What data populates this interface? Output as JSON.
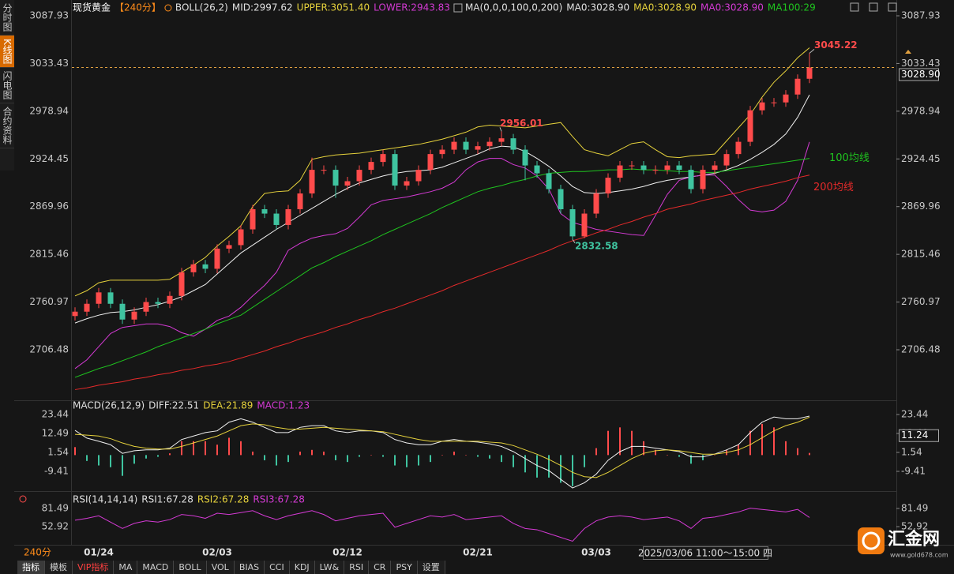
{
  "chart_data": [
    {
      "type": "candlestick",
      "legend": [
        {
          "text": "现货黄金",
          "color": "#ffffff"
        },
        {
          "text": "【240分】",
          "color": "#ff8c1a"
        },
        {
          "text": "BOLL(26,2)",
          "color": "#e0e0e0"
        },
        {
          "text": "MID:2997.62",
          "color": "#e0e0e0"
        },
        {
          "text": "UPPER:3051.40",
          "color": "#e6d23c"
        },
        {
          "text": "LOWER:2943.83",
          "color": "#d43ad4"
        },
        {
          "text": "MA(0,0,0,100,0,200)",
          "color": "#e0e0e0"
        },
        {
          "text": "MA0:3028.90",
          "color": "#e0e0e0"
        },
        {
          "text": "MA0:3028.90",
          "color": "#e6d23c"
        },
        {
          "text": "MA0:3028.90",
          "color": "#d43ad4"
        },
        {
          "text": "MA100:29",
          "color": "#1fc41f"
        }
      ],
      "categories": [
        null,
        null,
        "01/24",
        null,
        null,
        null,
        null,
        null,
        null,
        null,
        null,
        null,
        "02/03",
        null,
        null,
        null,
        null,
        null,
        null,
        null,
        null,
        null,
        null,
        "02/12",
        null,
        null,
        null,
        null,
        null,
        null,
        null,
        null,
        null,
        null,
        "02/21",
        null,
        null,
        null,
        null,
        null,
        null,
        null,
        null,
        null,
        "03/03",
        null,
        null,
        null,
        null,
        null,
        null,
        null,
        null,
        null,
        null,
        null,
        null,
        null,
        null,
        null,
        null,
        null,
        null
      ],
      "candles": {
        "open": [
          2745,
          2750,
          2759,
          2772,
          2759,
          2741,
          2750,
          2761,
          2759,
          2768,
          2795,
          2804,
          2799,
          2822,
          2826,
          2844,
          2867,
          2862,
          2849,
          2867,
          2885,
          2912,
          2912,
          2894,
          2899,
          2912,
          2921,
          2930,
          2894,
          2899,
          2912,
          2930,
          2935,
          2944,
          2935,
          2939,
          2944,
          2948,
          2935,
          2917,
          2908,
          2890,
          2867,
          2836,
          2862,
          2885,
          2903,
          2917,
          2917,
          2912,
          2912,
          2917,
          2912,
          2890,
          2912,
          2917,
          2930,
          2944,
          2980,
          2989,
          2989,
          2998,
          3016
        ],
        "high": [
          2755,
          2764,
          2777,
          2777,
          2764,
          2755,
          2766,
          2766,
          2773,
          2800,
          2809,
          2809,
          2827,
          2831,
          2849,
          2872,
          2872,
          2867,
          2872,
          2890,
          2926,
          2917,
          2917,
          2904,
          2917,
          2926,
          2935,
          2935,
          2904,
          2917,
          2935,
          2940,
          2949,
          2949,
          2944,
          2949,
          2956.01,
          2953,
          2940,
          2922,
          2913,
          2895,
          2872,
          2867,
          2890,
          2908,
          2922,
          2922,
          2922,
          2917,
          2922,
          2922,
          2917,
          2917,
          2922,
          2935,
          2949,
          2985,
          2994,
          2994,
          3003,
          3021,
          3045.22
        ],
        "low": [
          2740,
          2745,
          2754,
          2754,
          2736,
          2736,
          2745,
          2754,
          2754,
          2763,
          2790,
          2794,
          2794,
          2817,
          2821,
          2839,
          2857,
          2844,
          2844,
          2862,
          2880,
          2907,
          2880,
          2889,
          2894,
          2907,
          2916,
          2889,
          2889,
          2894,
          2907,
          2925,
          2930,
          2930,
          2930,
          2934,
          2939,
          2930,
          2900,
          2903,
          2885,
          2862,
          2832.58,
          2834,
          2857,
          2880,
          2898,
          2912,
          2907,
          2907,
          2907,
          2907,
          2885,
          2885,
          2907,
          2912,
          2925,
          2939,
          2975,
          2984,
          2984,
          2993,
          3011
        ],
        "close": [
          2750,
          2759,
          2772,
          2759,
          2741,
          2750,
          2761,
          2759,
          2768,
          2795,
          2804,
          2799,
          2822,
          2826,
          2844,
          2867,
          2862,
          2849,
          2867,
          2885,
          2912,
          2912,
          2894,
          2899,
          2912,
          2921,
          2930,
          2894,
          2899,
          2912,
          2930,
          2935,
          2944,
          2935,
          2939,
          2944,
          2948,
          2935,
          2917,
          2908,
          2890,
          2867,
          2836,
          2862,
          2885,
          2903,
          2917,
          2917,
          2912,
          2912,
          2917,
          2912,
          2890,
          2912,
          2917,
          2930,
          2944,
          2980,
          2989,
          2989,
          2998,
          3016,
          3028.9
        ]
      },
      "up_color": "#ff4b4b",
      "down_color": "#3fc4a0",
      "series": [
        {
          "color": "#e6d23c",
          "values": [
            2768,
            2774,
            2783,
            2786,
            2786,
            2786,
            2786,
            2786,
            2787,
            2795,
            2803,
            2812,
            2825,
            2836,
            2848,
            2870,
            2885,
            2887,
            2888,
            2900,
            2924,
            2927,
            2929,
            2930,
            2931,
            2933,
            2935,
            2937,
            2939,
            2941,
            2944,
            2947,
            2951,
            2955,
            2961,
            2963,
            2962,
            2961,
            2960,
            2962,
            2964,
            2966,
            2950,
            2935,
            2931,
            2928,
            2935,
            2942,
            2944,
            2935,
            2927,
            2926,
            2928,
            2929,
            2930,
            2945,
            2960,
            2975,
            2995,
            3012,
            3025,
            3040,
            3051.4
          ]
        },
        {
          "color": "#f0f0f0",
          "values": [
            2737,
            2742,
            2746,
            2749,
            2750,
            2752,
            2755,
            2758,
            2762,
            2767,
            2774,
            2781,
            2793,
            2805,
            2817,
            2826,
            2835,
            2844,
            2852,
            2860,
            2868,
            2876,
            2884,
            2891,
            2897,
            2901,
            2905,
            2908,
            2910,
            2911,
            2912,
            2915,
            2920,
            2925,
            2930,
            2936,
            2939,
            2938,
            2933,
            2925,
            2916,
            2905,
            2893,
            2886,
            2885,
            2886,
            2888,
            2890,
            2893,
            2897,
            2900,
            2902,
            2904,
            2906,
            2908,
            2912,
            2917,
            2924,
            2932,
            2941,
            2953,
            2972,
            2997.62
          ]
        },
        {
          "color": "#d43ad4",
          "values": [
            2685,
            2695,
            2710,
            2725,
            2732,
            2734,
            2736,
            2736,
            2733,
            2726,
            2722,
            2730,
            2740,
            2745,
            2755,
            2768,
            2780,
            2795,
            2820,
            2828,
            2834,
            2837,
            2839,
            2845,
            2858,
            2872,
            2877,
            2879,
            2881,
            2884,
            2887,
            2891,
            2898,
            2912,
            2921,
            2925,
            2925,
            2918,
            2914,
            2905,
            2890,
            2862,
            2852,
            2848,
            2844,
            2842,
            2840,
            2838,
            2837,
            2860,
            2884,
            2900,
            2904,
            2906,
            2906,
            2893,
            2878,
            2866,
            2864,
            2866,
            2876,
            2900,
            2943.83
          ]
        },
        {
          "name": "100均线",
          "color": "#1fc41f",
          "values": [
            2675,
            2680,
            2685,
            2689,
            2694,
            2699,
            2704,
            2710,
            2715,
            2720,
            2725,
            2730,
            2736,
            2741,
            2746,
            2755,
            2764,
            2773,
            2782,
            2791,
            2800,
            2806,
            2813,
            2819,
            2825,
            2831,
            2838,
            2844,
            2850,
            2856,
            2862,
            2869,
            2875,
            2881,
            2887,
            2891,
            2894,
            2898,
            2901,
            2905,
            2908,
            2909,
            2910,
            2910,
            2911,
            2912,
            2912,
            2913,
            2912,
            2912,
            2911,
            2910,
            2910,
            2909,
            2909,
            2911,
            2913,
            2915,
            2917,
            2919,
            2921,
            2923,
            2925
          ]
        },
        {
          "name": "200均线",
          "color": "#e52a2a",
          "values": [
            2661,
            2663,
            2666,
            2668,
            2670,
            2673,
            2675,
            2678,
            2680,
            2683,
            2685,
            2688,
            2690,
            2693,
            2697,
            2701,
            2705,
            2710,
            2714,
            2719,
            2723,
            2727,
            2732,
            2736,
            2741,
            2745,
            2750,
            2754,
            2759,
            2764,
            2769,
            2774,
            2780,
            2785,
            2790,
            2795,
            2800,
            2805,
            2810,
            2815,
            2820,
            2826,
            2831,
            2835,
            2840,
            2844,
            2849,
            2853,
            2858,
            2862,
            2867,
            2870,
            2873,
            2877,
            2880,
            2883,
            2886,
            2890,
            2893,
            2896,
            2899,
            2903,
            2906
          ]
        }
      ],
      "last_price": {
        "value": 3028.9,
        "label": "3028.90"
      },
      "ylim": [
        2650.57,
        3101.45
      ],
      "yticks": [
        3087.93,
        3033.43,
        2978.94,
        2924.45,
        2869.96,
        2815.46,
        2760.97,
        2706.48
      ]
    },
    {
      "type": "macd",
      "legend": [
        {
          "text": "MACD(26,12,9)",
          "color": "#e0e0e0"
        },
        {
          "text": "DIFF:22.51",
          "color": "#e0e0e0"
        },
        {
          "text": "DEA:21.89",
          "color": "#e6d23c"
        },
        {
          "text": "MACD:1.23",
          "color": "#d43ad4"
        }
      ],
      "series": [
        {
          "color": "#f0f0f0",
          "values": [
            14.3,
            9.8,
            8,
            6,
            1,
            2.5,
            3,
            3,
            4,
            9,
            11,
            13,
            14,
            19,
            21,
            19,
            16,
            13,
            13,
            16,
            17,
            17,
            14,
            13,
            14,
            14,
            13,
            9,
            7,
            6,
            6,
            8,
            9,
            8,
            7.5,
            6.5,
            5,
            2,
            -2,
            -6,
            -9,
            -14,
            -19,
            -16,
            -11,
            -3,
            2,
            5,
            5,
            4,
            3,
            2,
            -1,
            -1,
            0.6,
            3,
            6,
            13,
            19,
            22,
            21,
            21,
            22.51
          ]
        },
        {
          "color": "#e6d23c",
          "values": [
            12,
            11.5,
            11,
            9.5,
            7,
            5,
            4,
            3.5,
            3.5,
            5,
            7,
            9,
            11,
            14,
            17,
            18,
            17.5,
            16,
            15,
            15,
            15.5,
            16,
            15.5,
            15,
            14.5,
            14,
            13.5,
            12,
            10.5,
            9,
            8,
            8,
            8,
            8,
            8,
            7.5,
            7,
            5.5,
            3,
            0.5,
            -2.5,
            -6,
            -10,
            -12.5,
            -13,
            -10,
            -6,
            -2,
            1,
            2.5,
            3,
            2.5,
            1.5,
            0.5,
            0.5,
            1.5,
            3,
            6,
            10,
            14,
            17,
            19,
            21.89
          ]
        }
      ],
      "histogram": {
        "up_color": "#ff4b4b",
        "down_color": "#3fc4a0",
        "values": [
          4.6,
          -3.4,
          -6,
          -7,
          -12,
          -5,
          -2,
          -1,
          1,
          8,
          8,
          8,
          6,
          10,
          8,
          2,
          -3,
          -6,
          -4,
          2,
          3,
          2,
          -3,
          -4,
          -1,
          0,
          -1,
          -6,
          -7,
          -6,
          -4,
          0,
          2,
          0,
          -1,
          -2,
          -4,
          -7,
          -10,
          -13,
          -13,
          -16,
          -18,
          -7,
          4,
          14,
          16,
          14,
          8,
          3,
          0,
          -1,
          -5,
          -3,
          0.2,
          3,
          6,
          14,
          18,
          16,
          8,
          4,
          1.23
        ]
      },
      "marker": 11.24,
      "ylim": [
        -19.9,
        30.28
      ],
      "yticks": [
        23.44,
        12.49,
        1.54,
        -9.41
      ]
    },
    {
      "type": "line",
      "legend": [
        {
          "text": "RSI(14,14,14)",
          "color": "#e0e0e0"
        },
        {
          "text": "RSI1:67.28",
          "color": "#e0e0e0"
        },
        {
          "text": "RSI2:67.28",
          "color": "#e6d23c"
        },
        {
          "text": "RSI3:67.28",
          "color": "#d43ad4"
        }
      ],
      "series": [
        {
          "color": "#d43ad4",
          "values": [
            63,
            66,
            70,
            60,
            50,
            58,
            62,
            60,
            64,
            72,
            70,
            66,
            74,
            72,
            75,
            78,
            70,
            64,
            70,
            74,
            78,
            72,
            62,
            66,
            70,
            72,
            74,
            52,
            58,
            64,
            70,
            68,
            72,
            64,
            66,
            68,
            70,
            58,
            50,
            48,
            42,
            36,
            30,
            50,
            62,
            68,
            70,
            68,
            64,
            66,
            68,
            62,
            50,
            66,
            68,
            72,
            76,
            82,
            80,
            78,
            76,
            80,
            67.28
          ]
        }
      ],
      "ylim": [
        26.83,
        105.09
      ],
      "yticks": [
        81.49,
        52.92
      ]
    }
  ],
  "sidebar_tabs": [
    "分时图",
    "K线图",
    "闪电图",
    "合约资料"
  ],
  "period": "240分",
  "cursor_time": "2025/03/06 11:00～15:00 四",
  "toolbar": [
    "指标",
    "模板",
    "VIP指标",
    "MA",
    "MACD",
    "BOLL",
    "VOL",
    "BIAS",
    "CCI",
    "KDJ",
    "LW&",
    "RSI",
    "CR",
    "PSY",
    "设置"
  ],
  "logo": {
    "name": "汇金网",
    "url": "www.gold678.com"
  }
}
